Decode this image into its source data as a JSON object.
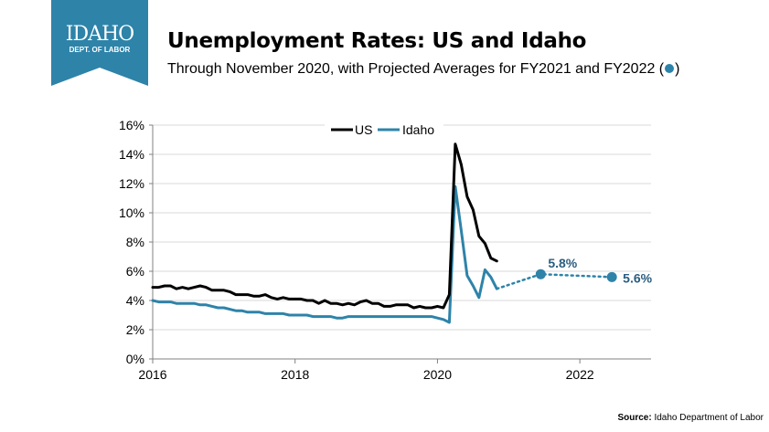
{
  "header": {
    "logo_line1": "IDAHO",
    "logo_line2": "DEPT. OF LABOR",
    "title": "Unemployment Rates: US and Idaho",
    "subtitle_before": "Through November 2020, with Projected Averages for FY2021 and FY2022 (",
    "subtitle_after": ")"
  },
  "footer": {
    "source_label": "Source:",
    "source_text": "Idaho Department of Labor"
  },
  "colors": {
    "us": "#000000",
    "idaho": "#2e83a9",
    "logo": "#2e83a9",
    "grid": "#d9d9d9",
    "axis": "#808080",
    "label": "#2a5d80"
  },
  "chart_data": {
    "type": "line",
    "title": "Unemployment Rates: US and Idaho",
    "xlabel": "",
    "ylabel": "",
    "xlim": [
      2016,
      2023
    ],
    "ylim": [
      0,
      16
    ],
    "x_ticks": [
      2016,
      2018,
      2020,
      2022
    ],
    "y_ticks": [
      0,
      2,
      4,
      6,
      8,
      10,
      12,
      14,
      16
    ],
    "y_tick_labels": [
      "0%",
      "2%",
      "4%",
      "6%",
      "8%",
      "10%",
      "12%",
      "14%",
      "16%"
    ],
    "grid": "horizontal",
    "legend": "top-center",
    "series": [
      {
        "name": "US",
        "x": [
          2016.0,
          2016.083,
          2016.167,
          2016.25,
          2016.333,
          2016.417,
          2016.5,
          2016.583,
          2016.667,
          2016.75,
          2016.833,
          2016.917,
          2017.0,
          2017.083,
          2017.167,
          2017.25,
          2017.333,
          2017.417,
          2017.5,
          2017.583,
          2017.667,
          2017.75,
          2017.833,
          2017.917,
          2018.0,
          2018.083,
          2018.167,
          2018.25,
          2018.333,
          2018.417,
          2018.5,
          2018.583,
          2018.667,
          2018.75,
          2018.833,
          2018.917,
          2019.0,
          2019.083,
          2019.167,
          2019.25,
          2019.333,
          2019.417,
          2019.5,
          2019.583,
          2019.667,
          2019.75,
          2019.833,
          2019.917,
          2020.0,
          2020.083,
          2020.167,
          2020.25,
          2020.333,
          2020.417,
          2020.5,
          2020.583,
          2020.667,
          2020.75,
          2020.833
        ],
        "y": [
          4.9,
          4.9,
          5.0,
          5.0,
          4.8,
          4.9,
          4.8,
          4.9,
          5.0,
          4.9,
          4.7,
          4.7,
          4.7,
          4.6,
          4.4,
          4.4,
          4.4,
          4.3,
          4.3,
          4.4,
          4.2,
          4.1,
          4.2,
          4.1,
          4.1,
          4.1,
          4.0,
          4.0,
          3.8,
          4.0,
          3.8,
          3.8,
          3.7,
          3.8,
          3.7,
          3.9,
          4.0,
          3.8,
          3.8,
          3.6,
          3.6,
          3.7,
          3.7,
          3.7,
          3.5,
          3.6,
          3.5,
          3.5,
          3.6,
          3.5,
          4.4,
          14.7,
          13.3,
          11.1,
          10.2,
          8.4,
          7.9,
          6.9,
          6.7
        ]
      },
      {
        "name": "Idaho",
        "x": [
          2016.0,
          2016.083,
          2016.167,
          2016.25,
          2016.333,
          2016.417,
          2016.5,
          2016.583,
          2016.667,
          2016.75,
          2016.833,
          2016.917,
          2017.0,
          2017.083,
          2017.167,
          2017.25,
          2017.333,
          2017.417,
          2017.5,
          2017.583,
          2017.667,
          2017.75,
          2017.833,
          2017.917,
          2018.0,
          2018.083,
          2018.167,
          2018.25,
          2018.333,
          2018.417,
          2018.5,
          2018.583,
          2018.667,
          2018.75,
          2018.833,
          2018.917,
          2019.0,
          2019.083,
          2019.167,
          2019.25,
          2019.333,
          2019.417,
          2019.5,
          2019.583,
          2019.667,
          2019.75,
          2019.833,
          2019.917,
          2020.0,
          2020.083,
          2020.167,
          2020.25,
          2020.333,
          2020.417,
          2020.5,
          2020.583,
          2020.667,
          2020.75,
          2020.833
        ],
        "y": [
          4.0,
          3.9,
          3.9,
          3.9,
          3.8,
          3.8,
          3.8,
          3.8,
          3.7,
          3.7,
          3.6,
          3.5,
          3.5,
          3.4,
          3.3,
          3.3,
          3.2,
          3.2,
          3.2,
          3.1,
          3.1,
          3.1,
          3.1,
          3.0,
          3.0,
          3.0,
          3.0,
          2.9,
          2.9,
          2.9,
          2.9,
          2.8,
          2.8,
          2.9,
          2.9,
          2.9,
          2.9,
          2.9,
          2.9,
          2.9,
          2.9,
          2.9,
          2.9,
          2.9,
          2.9,
          2.9,
          2.9,
          2.9,
          2.8,
          2.7,
          2.5,
          11.8,
          8.8,
          5.7,
          5.0,
          4.2,
          6.1,
          5.6,
          4.8
        ]
      }
    ],
    "projection": {
      "base": {
        "x": 2020.833,
        "y": 4.8
      },
      "points": [
        {
          "x": 2021.45,
          "y": 5.8,
          "label": "5.8%"
        },
        {
          "x": 2022.45,
          "y": 5.6,
          "label": "5.6%"
        }
      ]
    }
  }
}
